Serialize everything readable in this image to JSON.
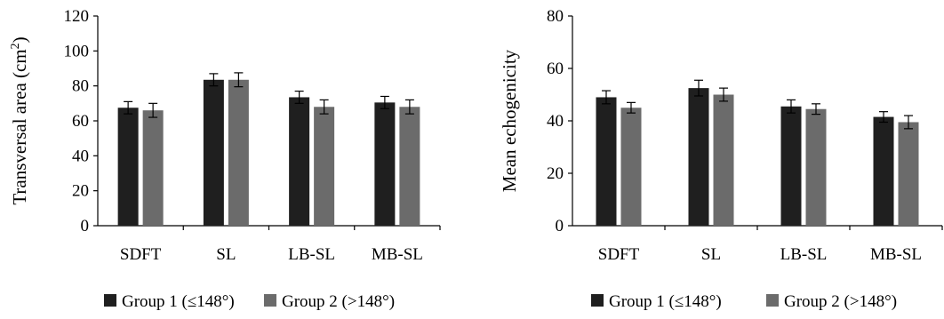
{
  "colors": {
    "group1": "#1f1f1f",
    "group2": "#6b6b6b",
    "axis": "#000000"
  },
  "chart_data": [
    {
      "type": "bar",
      "ylabel": "Transversal area (cm",
      "ylabel_sup": "2",
      "ylabel_close": ")",
      "ylim": [
        0,
        120
      ],
      "yticks": [
        "0",
        "20",
        "40",
        "60",
        "80",
        "100",
        "120"
      ],
      "categories": [
        "SDFT",
        "SL",
        "LB-SL",
        "MB-SL"
      ],
      "series": [
        {
          "name": "Group 1 (≤148°)",
          "values": [
            67.5,
            83.5,
            73.5,
            70.5
          ],
          "errors": [
            3.5,
            3.5,
            3.5,
            3.5
          ]
        },
        {
          "name": "Group 2 (>148°)",
          "values": [
            66,
            83.5,
            68,
            68
          ],
          "errors": [
            4,
            4,
            4,
            4
          ]
        }
      ],
      "legend": "bottom",
      "grid": false
    },
    {
      "type": "bar",
      "ylabel": "Mean echogenicity",
      "ylim": [
        0,
        80
      ],
      "yticks": [
        "0",
        "20",
        "40",
        "60",
        "80"
      ],
      "categories": [
        "SDFT",
        "SL",
        "LB-SL",
        "MB-SL"
      ],
      "series": [
        {
          "name": "Group 1 (≤148°)",
          "values": [
            49,
            52.5,
            45.5,
            41.5
          ],
          "errors": [
            2.5,
            3,
            2.5,
            2
          ]
        },
        {
          "name": "Group 2 (>148°)",
          "values": [
            45,
            50,
            44.5,
            39.5
          ],
          "errors": [
            2,
            2.5,
            2,
            2.5
          ]
        }
      ],
      "legend": "bottom",
      "grid": false
    }
  ]
}
